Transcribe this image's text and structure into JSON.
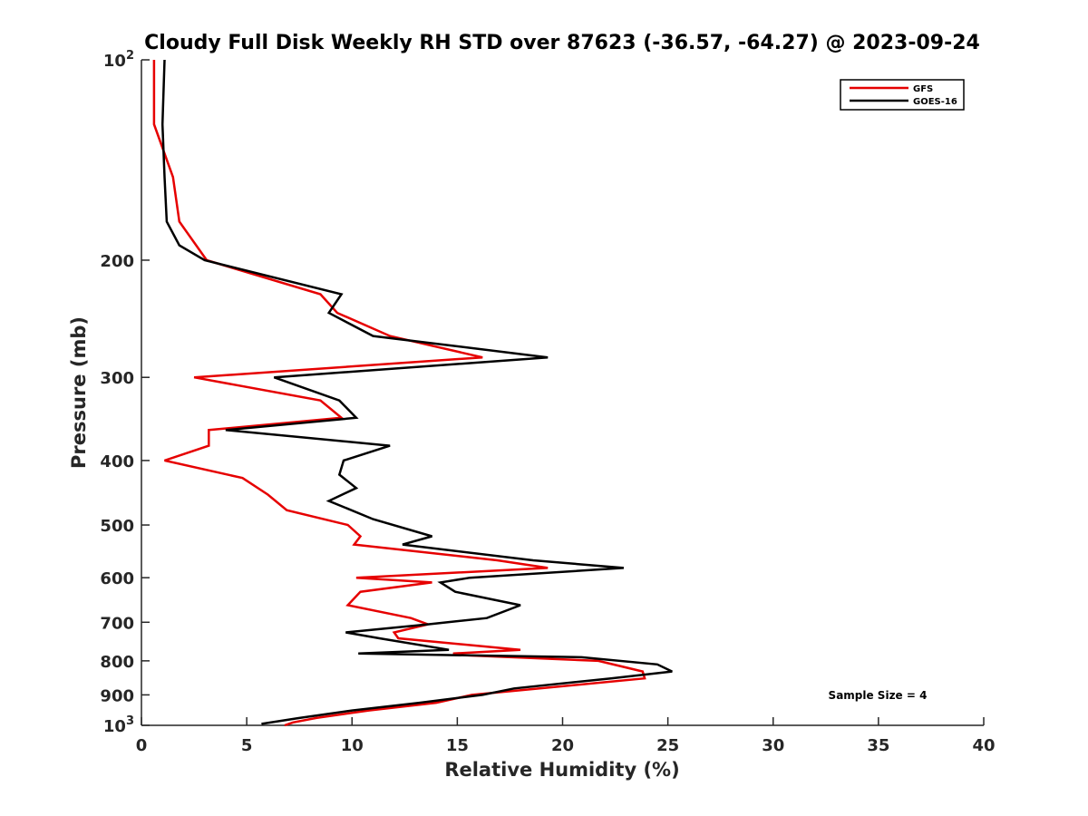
{
  "chart_data": {
    "type": "line",
    "title": "Cloudy Full Disk Weekly RH STD over 87623 (-36.57, -64.27) @ 2023-09-24",
    "xlabel": "Relative Humidity (%)",
    "ylabel": "Pressure (mb)",
    "xlim": [
      0,
      40
    ],
    "ylim": [
      100,
      1000
    ],
    "yscale": "log",
    "y_reversed": true,
    "grid": false,
    "legend_position": "top-right",
    "x_ticks": [
      0,
      5,
      10,
      15,
      20,
      25,
      30,
      35,
      40
    ],
    "x_tick_labels": [
      "0",
      "5",
      "10",
      "15",
      "20",
      "25",
      "30",
      "35",
      "40"
    ],
    "y_ticks": [
      100,
      200,
      300,
      400,
      500,
      600,
      700,
      800,
      900,
      1000
    ],
    "y_tick_labels": [
      "10^2",
      "200",
      "300",
      "400",
      "500",
      "600",
      "700",
      "800",
      "900",
      "10^3"
    ],
    "annotation": "Sample Size = 4",
    "series": [
      {
        "name": "GFS",
        "color": "#e60000",
        "points": [
          [
            0.6,
            100
          ],
          [
            0.6,
            125
          ],
          [
            1.5,
            150
          ],
          [
            1.8,
            175
          ],
          [
            3.1,
            200
          ],
          [
            8.5,
            225
          ],
          [
            9.3,
            240
          ],
          [
            11.8,
            260
          ],
          [
            16.2,
            280
          ],
          [
            2.5,
            300
          ],
          [
            8.5,
            325
          ],
          [
            9.5,
            345
          ],
          [
            3.2,
            360
          ],
          [
            3.2,
            380
          ],
          [
            1.1,
            400
          ],
          [
            4.8,
            425
          ],
          [
            6.0,
            450
          ],
          [
            6.9,
            475
          ],
          [
            9.8,
            500
          ],
          [
            10.4,
            520
          ],
          [
            10.1,
            535
          ],
          [
            16.9,
            565
          ],
          [
            19.3,
            580
          ],
          [
            10.2,
            600
          ],
          [
            13.8,
            610
          ],
          [
            10.4,
            630
          ],
          [
            9.8,
            660
          ],
          [
            12.8,
            690
          ],
          [
            13.6,
            705
          ],
          [
            12.0,
            725
          ],
          [
            12.2,
            740
          ],
          [
            18.0,
            770
          ],
          [
            14.8,
            780
          ],
          [
            15.4,
            785
          ],
          [
            21.7,
            800
          ],
          [
            23.8,
            830
          ],
          [
            23.9,
            850
          ],
          [
            15.7,
            900
          ],
          [
            14.0,
            925
          ],
          [
            10.8,
            950
          ],
          [
            8.3,
            975
          ],
          [
            7.2,
            990
          ],
          [
            6.8,
            1000
          ]
        ]
      },
      {
        "name": "GOES-16",
        "color": "#000000",
        "points": [
          [
            1.1,
            100
          ],
          [
            1.0,
            125
          ],
          [
            1.1,
            150
          ],
          [
            1.2,
            175
          ],
          [
            1.8,
            190
          ],
          [
            3.0,
            200
          ],
          [
            9.5,
            225
          ],
          [
            8.9,
            240
          ],
          [
            11.0,
            260
          ],
          [
            19.3,
            280
          ],
          [
            6.3,
            300
          ],
          [
            9.4,
            325
          ],
          [
            10.2,
            345
          ],
          [
            4.0,
            360
          ],
          [
            11.8,
            380
          ],
          [
            9.6,
            400
          ],
          [
            9.4,
            420
          ],
          [
            10.2,
            440
          ],
          [
            8.9,
            460
          ],
          [
            11.0,
            490
          ],
          [
            13.8,
            520
          ],
          [
            12.4,
            535
          ],
          [
            18.6,
            565
          ],
          [
            22.9,
            580
          ],
          [
            15.6,
            600
          ],
          [
            14.2,
            610
          ],
          [
            14.9,
            630
          ],
          [
            18.0,
            660
          ],
          [
            16.4,
            690
          ],
          [
            13.6,
            705
          ],
          [
            9.7,
            725
          ],
          [
            11.3,
            740
          ],
          [
            14.6,
            770
          ],
          [
            10.3,
            780
          ],
          [
            20.9,
            790
          ],
          [
            24.5,
            810
          ],
          [
            25.2,
            830
          ],
          [
            22.3,
            850
          ],
          [
            17.7,
            880
          ],
          [
            16.2,
            900
          ],
          [
            13.2,
            925
          ],
          [
            10.0,
            950
          ],
          [
            7.5,
            975
          ],
          [
            5.7,
            995
          ]
        ]
      }
    ]
  }
}
